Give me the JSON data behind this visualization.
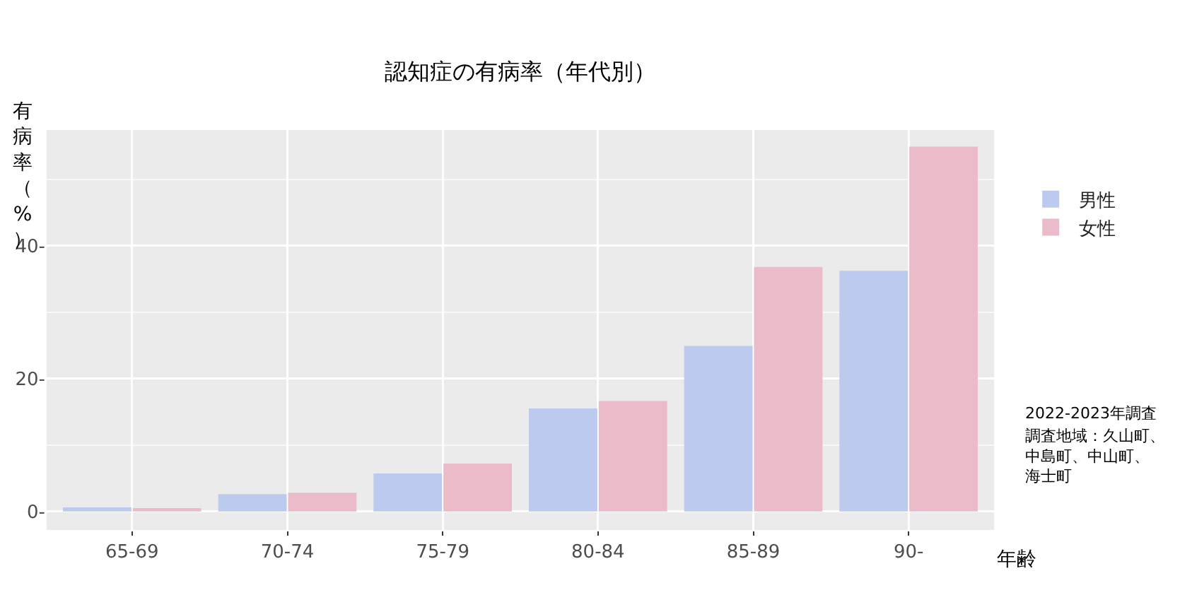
{
  "chart_data": {
    "type": "bar",
    "title": "認知症の有病率（年代別）",
    "xlabel": "年齢",
    "ylabel": "有病率（%）",
    "categories": [
      "65-69",
      "70-74",
      "75-79",
      "80-84",
      "85-89",
      "90-"
    ],
    "series": [
      {
        "name": "男性",
        "color": "#bbcaee",
        "values": [
          0.6,
          2.6,
          5.7,
          15.5,
          24.9,
          36.2
        ]
      },
      {
        "name": "女性",
        "color": "#ebbbc9",
        "values": [
          0.5,
          2.8,
          7.2,
          16.6,
          36.8,
          54.9
        ]
      }
    ],
    "ylim": [
      -2.8,
      57.4
    ],
    "yticks": [
      {
        "value": 0,
        "label": "0-"
      },
      {
        "value": 20,
        "label": "20-"
      },
      {
        "value": 40,
        "label": "40-"
      }
    ],
    "grid": true,
    "legend": "right",
    "annotations": [
      "2022-2023年調査",
      "調査地域：久山町、中島町、中山町、海士町"
    ]
  }
}
